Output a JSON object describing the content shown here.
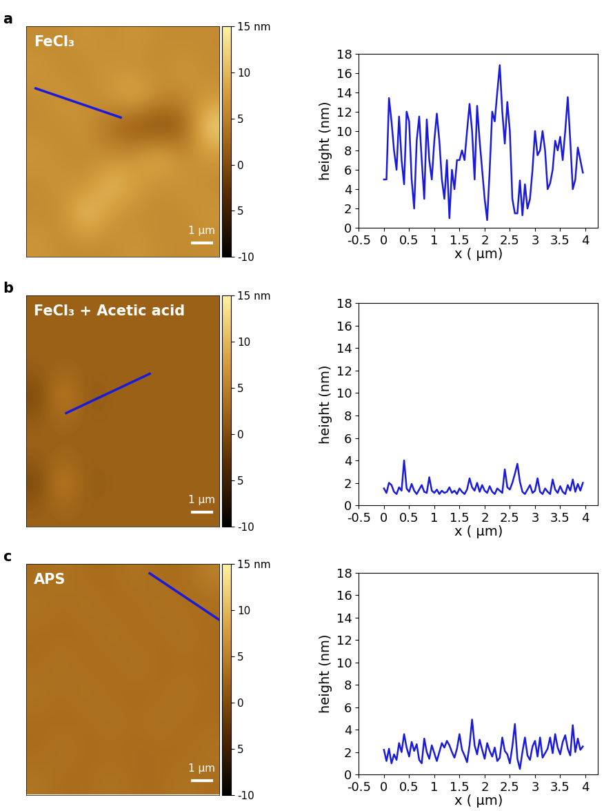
{
  "chart_data": [
    {
      "type": "heatmap",
      "panel_label": "a",
      "title": "FeCl₃",
      "tick_labels": false,
      "xlim": [
        0,
        10
      ],
      "ylim": [
        10,
        0
      ],
      "cells": [
        [
          6,
          6,
          7,
          6,
          7,
          6,
          6,
          6
        ],
        [
          7,
          6,
          6,
          7,
          6,
          6,
          7,
          6
        ],
        [
          6,
          7,
          6,
          7,
          10,
          6,
          6,
          7
        ],
        [
          6,
          6,
          7,
          3,
          0,
          -1,
          1,
          13
        ],
        [
          7,
          6,
          6,
          6,
          7,
          10,
          6,
          7
        ],
        [
          6,
          7,
          6,
          11,
          8,
          6,
          7,
          6
        ],
        [
          6,
          6,
          12,
          7,
          6,
          6,
          6,
          7
        ],
        [
          7,
          6,
          6,
          6,
          7,
          6,
          6,
          6
        ]
      ],
      "colorbar": {
        "range": [
          -10,
          15
        ],
        "ticks": [
          {
            "value": 15,
            "label": "15 nm"
          },
          10,
          5,
          0,
          {
            "value": -5,
            "label": "5"
          },
          -10
        ]
      },
      "profile_line": {
        "x": [
          0.5,
          4.9
        ],
        "y": [
          2.7,
          3.96
        ],
        "color": "#1a1adb"
      },
      "scale_bar": {
        "length": 1,
        "label": "1 µm"
      }
    },
    {
      "type": "line",
      "xlabel": "x ( µm)",
      "ylabel": "height (nm)",
      "xlim": [
        -0.5,
        4.25
      ],
      "ylim": [
        0,
        18
      ],
      "xticks": [
        -0.5,
        0,
        0.5,
        1,
        1.5,
        2,
        2.5,
        3,
        3.5,
        4
      ],
      "yticks": [
        0,
        2,
        4,
        6,
        8,
        10,
        12,
        14,
        16,
        18
      ],
      "color": "#1a1adb",
      "x": [
        0,
        0.05,
        0.1,
        0.15,
        0.2,
        0.25,
        0.3,
        0.35,
        0.4,
        0.45,
        0.5,
        0.55,
        0.6,
        0.65,
        0.7,
        0.75,
        0.8,
        0.85,
        0.9,
        0.95,
        1.0,
        1.05,
        1.1,
        1.15,
        1.2,
        1.25,
        1.3,
        1.35,
        1.4,
        1.45,
        1.5,
        1.55,
        1.6,
        1.65,
        1.7,
        1.75,
        1.8,
        1.85,
        1.9,
        1.95,
        2.0,
        2.05,
        2.1,
        2.15,
        2.2,
        2.25,
        2.3,
        2.35,
        2.4,
        2.45,
        2.5,
        2.55,
        2.6,
        2.65,
        2.7,
        2.75,
        2.8,
        2.85,
        2.9,
        2.95,
        3.0,
        3.05,
        3.1,
        3.15,
        3.2,
        3.25,
        3.3,
        3.35,
        3.4,
        3.45,
        3.5,
        3.55,
        3.6,
        3.65,
        3.7,
        3.75,
        3.8,
        3.85,
        3.9,
        3.95
      ],
      "values": [
        5,
        5,
        13.4,
        11,
        8,
        6,
        11.5,
        7,
        4.5,
        12,
        11,
        5,
        2,
        9,
        11.5,
        7,
        3,
        11.2,
        7,
        5,
        9,
        11.8,
        9,
        5,
        3,
        7,
        1,
        6,
        4,
        7,
        7,
        8,
        7,
        10,
        12.8,
        10,
        5,
        12.6,
        9,
        6,
        3,
        0.8,
        6,
        12,
        11,
        14,
        16.8,
        12,
        8.7,
        13,
        10,
        3,
        1.5,
        1.5,
        4.9,
        1.3,
        4.5,
        2,
        3,
        6,
        10,
        7.5,
        8,
        10,
        8,
        4,
        4.6,
        6,
        9,
        8,
        9.4,
        7,
        10,
        13.5,
        9,
        4,
        5,
        8.3,
        7,
        5.7
      ]
    },
    {
      "type": "heatmap",
      "panel_label": "b",
      "title": "FeCl₃ + Acetic acid",
      "tick_labels": false,
      "xlim": [
        0,
        10
      ],
      "ylim": [
        10,
        0
      ],
      "cells": [
        [
          2,
          2,
          2,
          2,
          2,
          2,
          2,
          2
        ],
        [
          2,
          2,
          2,
          2,
          2,
          2,
          2,
          2
        ],
        [
          2,
          2,
          2,
          2,
          2,
          2,
          2,
          2
        ],
        [
          -1,
          6,
          1,
          2,
          2,
          2,
          2,
          2
        ],
        [
          2,
          2,
          2,
          2,
          2,
          2,
          2,
          2
        ],
        [
          2,
          2,
          2,
          2,
          2,
          2,
          2,
          2
        ],
        [
          -1,
          6,
          1,
          2,
          2,
          2,
          2,
          2
        ],
        [
          2,
          2,
          2,
          2,
          2,
          2,
          2,
          2
        ]
      ],
      "colorbar": {
        "range": [
          -10,
          15
        ],
        "ticks": [
          {
            "value": 15,
            "label": "15 nm"
          },
          10,
          5,
          0,
          {
            "value": -5,
            "label": "5"
          },
          -10
        ]
      },
      "profile_line": {
        "x": [
          2.08,
          6.4
        ],
        "y": [
          5.1,
          3.4
        ],
        "color": "#1a1adb"
      },
      "scale_bar": {
        "length": 1,
        "label": "1 µm"
      }
    },
    {
      "type": "line",
      "xlabel": "x ( µm)",
      "ylabel": "height (nm)",
      "xlim": [
        -0.5,
        4.25
      ],
      "ylim": [
        0,
        18
      ],
      "xticks": [
        -0.5,
        0,
        0.5,
        1,
        1.5,
        2,
        2.5,
        3,
        3.5,
        4
      ],
      "yticks": [
        0,
        2,
        4,
        6,
        8,
        10,
        12,
        14,
        16,
        18
      ],
      "color": "#1a1adb",
      "x": [
        0,
        0.05,
        0.1,
        0.15,
        0.2,
        0.25,
        0.3,
        0.35,
        0.4,
        0.45,
        0.5,
        0.55,
        0.6,
        0.65,
        0.7,
        0.75,
        0.8,
        0.85,
        0.9,
        0.95,
        1.0,
        1.05,
        1.1,
        1.15,
        1.2,
        1.25,
        1.3,
        1.35,
        1.4,
        1.45,
        1.5,
        1.55,
        1.6,
        1.65,
        1.7,
        1.75,
        1.8,
        1.85,
        1.9,
        1.95,
        2.0,
        2.05,
        2.1,
        2.15,
        2.2,
        2.25,
        2.3,
        2.35,
        2.4,
        2.45,
        2.5,
        2.55,
        2.6,
        2.65,
        2.7,
        2.75,
        2.8,
        2.85,
        2.9,
        2.95,
        3.0,
        3.05,
        3.1,
        3.15,
        3.2,
        3.25,
        3.3,
        3.35,
        3.4,
        3.45,
        3.5,
        3.55,
        3.6,
        3.65,
        3.7,
        3.75,
        3.8,
        3.85,
        3.9,
        3.95
      ],
      "values": [
        1.5,
        1.1,
        2.0,
        1.8,
        1.2,
        1.0,
        1.6,
        1.3,
        4.0,
        1.5,
        1.2,
        1.9,
        1.3,
        1.0,
        1.4,
        1.8,
        1.2,
        1.1,
        2.5,
        1.3,
        1.1,
        1.4,
        1.0,
        1.3,
        1.1,
        1.2,
        1.6,
        1.1,
        1.3,
        1.0,
        1.5,
        1.2,
        1.0,
        1.4,
        2.4,
        1.6,
        1.3,
        2.0,
        1.2,
        1.8,
        1.3,
        1.1,
        1.7,
        1.2,
        1.0,
        1.5,
        1.3,
        1.1,
        3.2,
        1.6,
        1.4,
        2.0,
        2.8,
        3.7,
        2.1,
        1.2,
        1.0,
        1.4,
        1.8,
        1.1,
        1.3,
        2.4,
        1.2,
        1.0,
        1.5,
        1.2,
        1.0,
        2.3,
        1.4,
        1.1,
        1.7,
        1.2,
        1.0,
        1.8,
        1.3,
        2.3,
        1.2,
        1.9,
        1.3,
        2.0
      ]
    },
    {
      "type": "heatmap",
      "panel_label": "c",
      "title": "APS",
      "tick_labels": false,
      "xlim": [
        0,
        10
      ],
      "ylim": [
        10,
        0
      ],
      "cells": [
        [
          3,
          4,
          3,
          3,
          4,
          3,
          3,
          5
        ],
        [
          4,
          3,
          4,
          3,
          3,
          4,
          3,
          3
        ],
        [
          3,
          3,
          3,
          4,
          3,
          3,
          4,
          3
        ],
        [
          3,
          4,
          3,
          3,
          4,
          3,
          3,
          3
        ],
        [
          4,
          3,
          4,
          3,
          3,
          3,
          4,
          3
        ],
        [
          3,
          3,
          3,
          4,
          3,
          4,
          3,
          3
        ],
        [
          3,
          4,
          3,
          3,
          3,
          3,
          3,
          4
        ],
        [
          4,
          3,
          3,
          4,
          3,
          3,
          4,
          3
        ]
      ],
      "colorbar": {
        "range": [
          -10,
          15
        ],
        "ticks": [
          {
            "value": 15,
            "label": "15 nm"
          },
          10,
          5,
          0,
          {
            "value": -5,
            "label": "5"
          },
          -10
        ]
      },
      "profile_line": {
        "x": [
          6.4,
          10.3
        ],
        "y": [
          0.42,
          2.6
        ],
        "color": "#1a1adb"
      },
      "scale_bar": {
        "length": 1,
        "label": "1 µm"
      }
    },
    {
      "type": "line",
      "xlabel": "x ( µm)",
      "ylabel": "height (nm)",
      "xlim": [
        -0.5,
        4.25
      ],
      "ylim": [
        0,
        18
      ],
      "xticks": [
        -0.5,
        0,
        0.5,
        1,
        1.5,
        2,
        2.5,
        3,
        3.5,
        4
      ],
      "yticks": [
        0,
        2,
        4,
        6,
        8,
        10,
        12,
        14,
        16,
        18
      ],
      "color": "#1a1adb",
      "x": [
        0,
        0.05,
        0.1,
        0.15,
        0.2,
        0.25,
        0.3,
        0.35,
        0.4,
        0.45,
        0.5,
        0.55,
        0.6,
        0.65,
        0.7,
        0.75,
        0.8,
        0.85,
        0.9,
        0.95,
        1.0,
        1.05,
        1.1,
        1.15,
        1.2,
        1.25,
        1.3,
        1.35,
        1.4,
        1.45,
        1.5,
        1.55,
        1.6,
        1.65,
        1.7,
        1.75,
        1.8,
        1.85,
        1.9,
        1.95,
        2.0,
        2.05,
        2.1,
        2.15,
        2.2,
        2.25,
        2.3,
        2.35,
        2.4,
        2.45,
        2.5,
        2.55,
        2.6,
        2.65,
        2.7,
        2.75,
        2.8,
        2.85,
        2.9,
        2.95,
        3.0,
        3.05,
        3.1,
        3.15,
        3.2,
        3.25,
        3.3,
        3.35,
        3.4,
        3.45,
        3.5,
        3.55,
        3.6,
        3.65,
        3.7,
        3.75,
        3.8,
        3.85,
        3.9,
        3.95
      ],
      "values": [
        2.2,
        1.2,
        2.3,
        1.0,
        1.8,
        1.3,
        2.8,
        2.0,
        3.6,
        2.4,
        1.6,
        2.9,
        2.1,
        2.7,
        1.3,
        1.0,
        3.2,
        2.0,
        1.4,
        2.6,
        1.9,
        1.2,
        2.0,
        2.8,
        2.4,
        3.0,
        2.6,
        2.0,
        1.5,
        2.3,
        3.6,
        2.2,
        1.7,
        1.1,
        2.6,
        4.9,
        2.6,
        1.8,
        3.1,
        2.2,
        1.4,
        2.8,
        2.1,
        1.6,
        2.4,
        1.2,
        1.5,
        3.3,
        2.1,
        1.8,
        1.0,
        2.5,
        4.5,
        1.4,
        0.5,
        2.0,
        3.3,
        1.7,
        1.3,
        2.5,
        3.0,
        1.6,
        3.3,
        1.5,
        1.9,
        2.3,
        3.3,
        1.9,
        3.6,
        2.4,
        1.8,
        2.9,
        3.5,
        2.3,
        1.7,
        4.4,
        2.0,
        3.2,
        2.2,
        2.5
      ]
    }
  ]
}
